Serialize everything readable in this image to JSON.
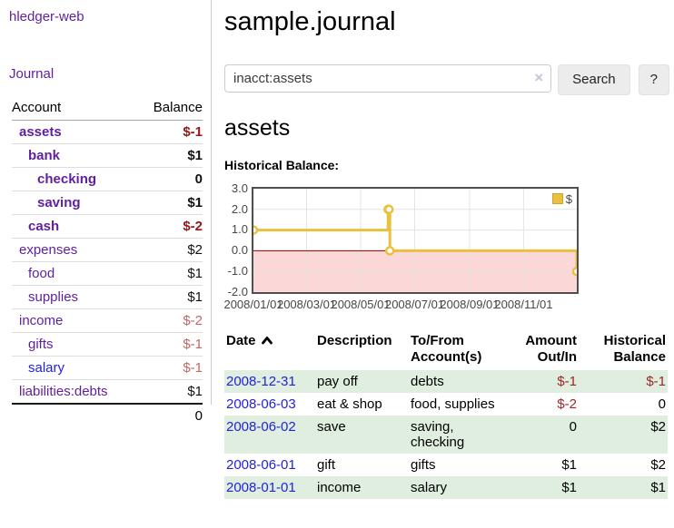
{
  "colors": {
    "link_purple": "#5f1f9e",
    "link_blue": "#2222dd",
    "negative_strong": "#971616",
    "negative_soft": "#c16868",
    "row_green": "#dfeedf",
    "series_gold": "#e9c13f"
  },
  "sidebar": {
    "brand": "hledger-web",
    "journal_link": "Journal",
    "accounts_header": {
      "account": "Account",
      "balance": "Balance"
    },
    "accounts": [
      {
        "name": "assets",
        "balance": "$-1",
        "indent": 0,
        "bold": true,
        "tone": "neg-strong",
        "link": "purple"
      },
      {
        "name": "bank",
        "balance": "$1",
        "indent": 1,
        "bold": true,
        "tone": "pos",
        "link": "purple"
      },
      {
        "name": "checking",
        "balance": "0",
        "indent": 2,
        "bold": true,
        "tone": "pos",
        "link": "purple"
      },
      {
        "name": "saving",
        "balance": "$1",
        "indent": 2,
        "bold": true,
        "tone": "pos",
        "link": "purple"
      },
      {
        "name": "cash",
        "balance": "$-2",
        "indent": 1,
        "bold": true,
        "tone": "neg-strong",
        "link": "purple"
      },
      {
        "name": "expenses",
        "balance": "$2",
        "indent": 0,
        "bold": false,
        "tone": "pos",
        "link": "purple"
      },
      {
        "name": "food",
        "balance": "$1",
        "indent": 1,
        "bold": false,
        "tone": "pos",
        "link": "purple"
      },
      {
        "name": "supplies",
        "balance": "$1",
        "indent": 1,
        "bold": false,
        "tone": "pos",
        "link": "purple"
      },
      {
        "name": "income",
        "balance": "$-2",
        "indent": 0,
        "bold": false,
        "tone": "neg-soft",
        "link": "purple"
      },
      {
        "name": "gifts",
        "balance": "$-1",
        "indent": 1,
        "bold": false,
        "tone": "neg-soft",
        "link": "purple"
      },
      {
        "name": "salary",
        "balance": "$-1",
        "indent": 1,
        "bold": false,
        "tone": "neg-soft",
        "link": "blue"
      },
      {
        "name": "liabilities:debts",
        "balance": "$1",
        "indent": 0,
        "bold": false,
        "tone": "pos",
        "link": "purple"
      }
    ],
    "total": "0"
  },
  "main": {
    "title": "sample.journal",
    "search": {
      "value": "inacct:assets",
      "clear_icon": "×",
      "button_label": "Search",
      "help_label": "?"
    },
    "account_heading": "assets",
    "chart_label": "Historical Balance:"
  },
  "chart_data": {
    "type": "line",
    "style": "step",
    "title": "Historical Balance",
    "legend": "$",
    "legend_position": "top-right",
    "grid": true,
    "xlim_days": [
      0,
      365
    ],
    "ylim": [
      -2,
      3
    ],
    "y_ticks": [
      {
        "label": "3.0",
        "value": 3
      },
      {
        "label": "2.0",
        "value": 2
      },
      {
        "label": "1.0",
        "value": 1
      },
      {
        "label": "0.0",
        "value": 0
      },
      {
        "label": "-1.0",
        "value": -1
      },
      {
        "label": "-2.0",
        "value": -2
      }
    ],
    "x_ticks": [
      {
        "label": "2008/01/01",
        "day": 0
      },
      {
        "label": "2008/03/01",
        "day": 60
      },
      {
        "label": "2008/05/01",
        "day": 121
      },
      {
        "label": "2008/07/01",
        "day": 182
      },
      {
        "label": "2008/09/01",
        "day": 244
      },
      {
        "label": "2008/11/01",
        "day": 305
      }
    ],
    "series": [
      {
        "name": "$",
        "color": "#e9c13f",
        "points": [
          {
            "date": "2008-01-01",
            "day": 0,
            "value": 1
          },
          {
            "date": "2008-06-01",
            "day": 152,
            "value": 2
          },
          {
            "date": "2008-06-02",
            "day": 153,
            "value": 2
          },
          {
            "date": "2008-06-03",
            "day": 154,
            "value": 0
          },
          {
            "date": "2008-12-31",
            "day": 365,
            "value": -1
          }
        ]
      }
    ],
    "negative_region_fill": "#fbd7d7",
    "zero_line_color": "#8b0000",
    "grid_color": "#e3e3e3"
  },
  "register": {
    "headers": {
      "date": "Date",
      "sort_indicator": "up",
      "description": "Description",
      "tofrom": "To/From\nAccount(s)",
      "amount": "Amount\nOut/In",
      "balance": "Historical\nBalance"
    },
    "rows": [
      {
        "date": "2008-12-31",
        "description": "pay off",
        "accounts": "debts",
        "amount": "$-1",
        "amount_neg": true,
        "balance": "$-1",
        "balance_neg": true
      },
      {
        "date": "2008-06-03",
        "description": "eat & shop",
        "accounts": "food, supplies",
        "amount": "$-2",
        "amount_neg": true,
        "balance": "0",
        "balance_neg": false
      },
      {
        "date": "2008-06-02",
        "description": "save",
        "accounts": "saving,\nchecking",
        "amount": "0",
        "amount_neg": false,
        "balance": "$2",
        "balance_neg": false
      },
      {
        "date": "2008-06-01",
        "description": "gift",
        "accounts": "gifts",
        "amount": "$1",
        "amount_neg": false,
        "balance": "$2",
        "balance_neg": false
      },
      {
        "date": "2008-01-01",
        "description": "income",
        "accounts": "salary",
        "amount": "$1",
        "amount_neg": false,
        "balance": "$1",
        "balance_neg": false
      }
    ]
  }
}
